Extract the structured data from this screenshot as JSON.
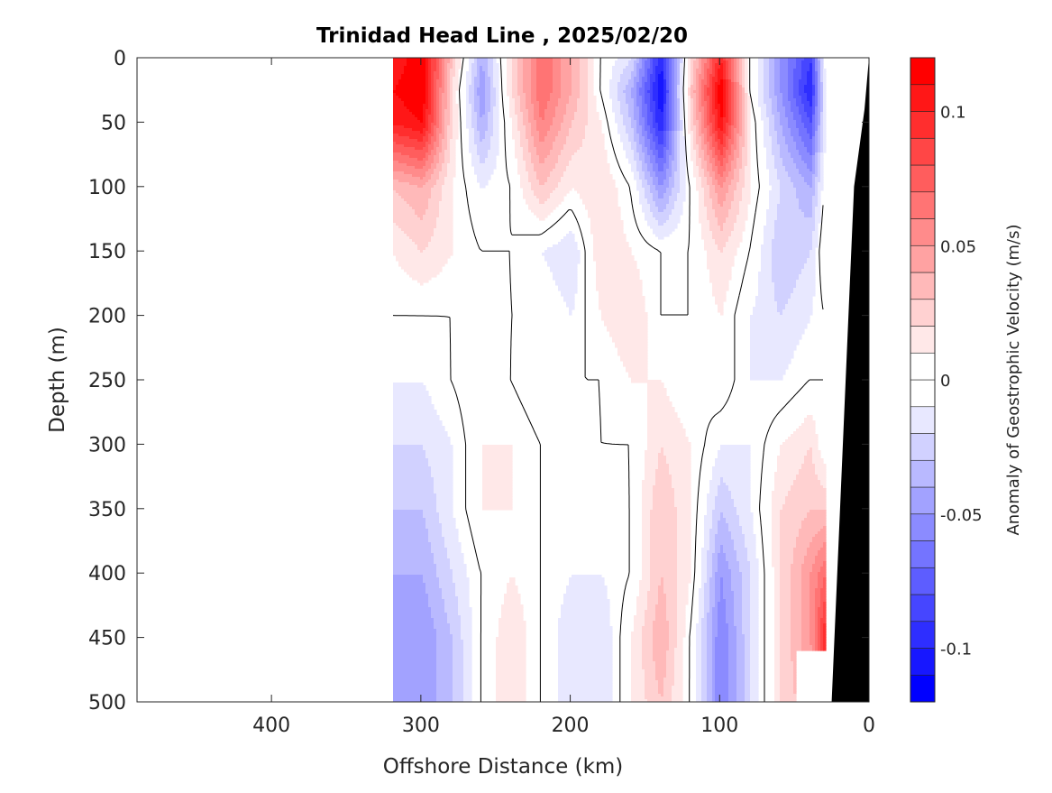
{
  "chart_data": {
    "type": "heatmap",
    "subtype": "filled-contour",
    "title": "Trinidad Head Line , 2025/02/20",
    "xlabel": "Offshore Distance (km)",
    "ylabel": "Depth (m)",
    "xlim": [
      490,
      0
    ],
    "x_reversed": true,
    "ylim": [
      0,
      500
    ],
    "y_reversed": true,
    "xticks": [
      400,
      300,
      200,
      100,
      0
    ],
    "xtick_labels": [
      "400",
      "300",
      "200",
      "100",
      "0"
    ],
    "yticks": [
      0,
      50,
      100,
      150,
      200,
      250,
      300,
      350,
      400,
      450,
      500
    ],
    "ytick_labels": [
      "0",
      "50",
      "100",
      "150",
      "200",
      "250",
      "300",
      "350",
      "400",
      "450",
      "500"
    ],
    "colorbar": {
      "label": "Anomaly of Geostrophic Velocity (m/s)",
      "range": [
        -0.12,
        0.12
      ],
      "level_step": 0.01,
      "ticks": [
        0.1,
        0.05,
        0,
        -0.05,
        -0.1
      ],
      "tick_labels": [
        "0.1",
        "0.05",
        "0",
        "-0.05",
        "-0.1"
      ],
      "colors": {
        "negative": "#0000ff",
        "zero": "#ffffff",
        "positive": "#ff0000"
      }
    },
    "contour_lines": [
      0
    ],
    "grid_x_km": [
      320,
      300,
      280,
      260,
      240,
      220,
      200,
      180,
      160,
      140,
      120,
      100,
      80,
      60,
      40,
      30
    ],
    "grid_depth_m": [
      0,
      25,
      50,
      100,
      150,
      200,
      250,
      300,
      350,
      400,
      450,
      500
    ],
    "values": [
      [
        0.1,
        0.12,
        0.03,
        -0.04,
        0.02,
        0.07,
        0.04,
        0.0,
        -0.02,
        -0.1,
        0.02,
        0.1,
        0.0,
        -0.05,
        -0.09,
        0.0
      ],
      [
        0.11,
        0.12,
        0.02,
        -0.05,
        0.02,
        0.07,
        0.04,
        0.0,
        -0.04,
        -0.11,
        0.03,
        0.12,
        0.0,
        -0.05,
        -0.1,
        -0.01
      ],
      [
        0.1,
        0.11,
        0.02,
        -0.04,
        0.01,
        0.06,
        0.03,
        0.01,
        -0.03,
        -0.1,
        0.02,
        0.11,
        0.01,
        -0.04,
        -0.08,
        -0.01
      ],
      [
        0.03,
        0.04,
        0.01,
        -0.01,
        0.0,
        0.03,
        0.01,
        0.02,
        0.0,
        -0.05,
        0.0,
        0.05,
        0.01,
        -0.02,
        -0.04,
        0.0
      ],
      [
        0.01,
        0.02,
        0.01,
        0.0,
        0.0,
        -0.01,
        -0.02,
        0.02,
        0.01,
        0.0,
        0.0,
        0.02,
        0.0,
        -0.03,
        -0.02,
        0.01
      ],
      [
        0.0,
        0.0,
        0.0,
        0.01,
        0.0,
        0.0,
        -0.01,
        0.01,
        0.02,
        0.0,
        0.0,
        0.01,
        -0.01,
        -0.02,
        -0.01,
        0.0
      ],
      [
        -0.01,
        -0.01,
        0.0,
        0.01,
        0.0,
        -0.01,
        0.0,
        0.0,
        0.01,
        0.01,
        0.0,
        0.01,
        -0.01,
        -0.01,
        0.0,
        0.0
      ],
      [
        -0.02,
        -0.02,
        -0.01,
        0.01,
        0.01,
        0.0,
        -0.01,
        0.0,
        0.0,
        0.02,
        0.01,
        -0.01,
        -0.01,
        0.01,
        0.02,
        0.0
      ],
      [
        -0.03,
        -0.03,
        -0.01,
        0.01,
        0.01,
        0.0,
        -0.01,
        -0.01,
        0.0,
        0.03,
        0.01,
        -0.03,
        -0.01,
        0.02,
        0.03,
        0.03
      ],
      [
        -0.04,
        -0.04,
        -0.02,
        0.0,
        0.01,
        0.0,
        -0.01,
        -0.01,
        0.0,
        0.03,
        0.01,
        -0.05,
        -0.02,
        0.02,
        0.05,
        0.07
      ],
      [
        -0.05,
        -0.05,
        -0.03,
        0.0,
        0.02,
        0.0,
        -0.02,
        -0.02,
        0.01,
        0.04,
        0.0,
        -0.06,
        -0.02,
        0.02,
        0.05,
        0.1
      ],
      [
        -0.05,
        -0.05,
        -0.03,
        0.0,
        0.02,
        0.0,
        -0.02,
        -0.02,
        0.01,
        0.03,
        0.0,
        -0.06,
        -0.02,
        0.02,
        0.04,
        0.1
      ]
    ],
    "data_extent_km": {
      "max": 320,
      "min_shallow": 28,
      "min_deep": 50,
      "deep_from_m": 460
    },
    "bathymetry": [
      [
        0,
        0
      ],
      [
        3,
        40
      ],
      [
        10,
        100
      ],
      [
        25,
        500
      ],
      [
        0,
        500
      ]
    ]
  }
}
